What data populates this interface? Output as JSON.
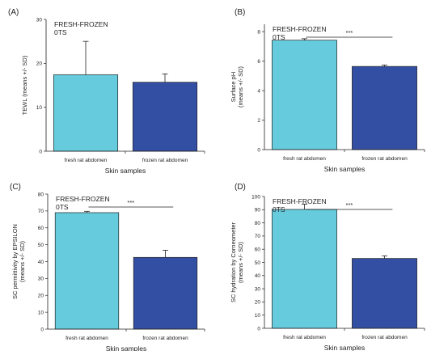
{
  "colors": {
    "fresh_bar": "#66CCDD",
    "frozen_bar": "#334FA3",
    "axis": "#222222"
  },
  "chart_data": [
    {
      "type": "bar",
      "panel_label": "(A)",
      "annotation_lines": [
        "FRESH-FROZEN",
        "0TS"
      ],
      "significance": "",
      "categories": [
        "fresh rat abdomen",
        "frozen rat abdomen"
      ],
      "values": [
        17.4,
        15.7
      ],
      "errors": [
        7.6,
        1.9
      ],
      "xlabel": "Skin samples",
      "ylabel_lines": [
        "TEWL (means +/- SD)"
      ],
      "ylim": [
        0,
        30
      ],
      "yticks": [
        0,
        10,
        20,
        30
      ]
    },
    {
      "type": "bar",
      "panel_label": "(B)",
      "annotation_lines": [
        "FRESH-FROZEN",
        "0TS"
      ],
      "significance": "***",
      "categories": [
        "fresh rat abdomen",
        "frozen rat abdomen"
      ],
      "values": [
        7.42,
        5.64
      ],
      "errors": [
        0.1,
        0.1
      ],
      "xlabel": "Skin samples",
      "ylabel_lines": [
        "Surface pH",
        "(means +/- SD)"
      ],
      "ylim": [
        0,
        8.5
      ],
      "yticks": [
        0,
        2,
        4,
        6,
        8
      ]
    },
    {
      "type": "bar",
      "panel_label": "(C)",
      "annotation_lines": [
        "FRESH-FROZEN",
        "0TS"
      ],
      "significance": "***",
      "categories": [
        "fresh rat abdomen",
        "frozen rat abdomen"
      ],
      "values": [
        69,
        42.5
      ],
      "errors": [
        0.8,
        4.2
      ],
      "xlabel": "Skin samples",
      "ylabel_lines": [
        "SC permittivity by EPSILON",
        "(means +/- SD)"
      ],
      "ylim": [
        0,
        80
      ],
      "yticks": [
        0,
        10,
        20,
        30,
        40,
        50,
        60,
        70,
        80
      ]
    },
    {
      "type": "bar",
      "panel_label": "(D)",
      "annotation_lines": [
        "FRESH-FROZEN",
        "0TS"
      ],
      "significance": "***",
      "categories": [
        "fresh rat abdomen",
        "frozen rat abdomen"
      ],
      "values": [
        90.2,
        53
      ],
      "errors": [
        4,
        2
      ],
      "xlabel": "Skin samples",
      "ylabel_lines": [
        "SC hydration by Corneometer",
        "(means +/- SD)"
      ],
      "ylim": [
        0,
        100
      ],
      "yticks": [
        0,
        10,
        20,
        30,
        40,
        50,
        60,
        70,
        80,
        90,
        100
      ]
    }
  ]
}
